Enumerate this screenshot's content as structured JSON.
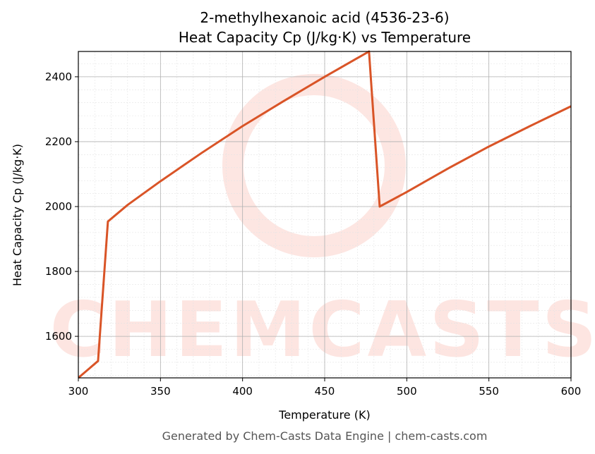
{
  "chart_data": {
    "type": "line",
    "title": "2-methylhexanoic acid (4536-23-6)",
    "subtitle": "Heat Capacity Cp (J/kg·K) vs Temperature",
    "x_label": "Temperature (K)",
    "y_label": "Heat Capacity Cp (J/kg·K)",
    "footer": "Generated by Chem-Casts Data Engine | chem-casts.com",
    "watermark": "CHEMCASTS",
    "x": [
      300,
      312,
      318,
      330,
      350,
      375,
      400,
      425,
      450,
      477,
      483.5,
      500,
      525,
      550,
      575,
      600
    ],
    "series": [
      {
        "name": "Cp",
        "color": "#d95427",
        "values": [
          1472,
          1524,
          1954,
          2005,
          2078,
          2165,
          2248,
          2325,
          2400,
          2478,
          2000,
          2045,
          2117,
          2185,
          2248,
          2309
        ]
      }
    ],
    "xlim": [
      300,
      600
    ],
    "xticks": [
      300,
      350,
      400,
      450,
      500,
      550,
      600
    ],
    "ylim": [
      1472,
      2478
    ],
    "yticks": [
      1600,
      1800,
      2000,
      2200,
      2400
    ],
    "grid": true
  }
}
